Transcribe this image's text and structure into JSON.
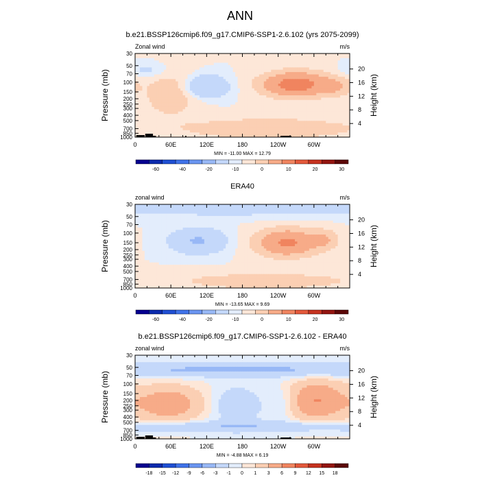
{
  "page_title": "ANN",
  "colorbar_labels_abs": [
    "-60",
    "-40",
    "-20",
    "-10",
    "0",
    "10",
    "20",
    "30"
  ],
  "colorbar_labels_diff": [
    "-18",
    "-15",
    "-12",
    "-9",
    "-6",
    "-3",
    "-1",
    "0",
    "1",
    "3",
    "6",
    "9",
    "12",
    "15",
    "18"
  ],
  "colorbar_colors": [
    "#05008f",
    "#0b2aad",
    "#1f4fd3",
    "#3f72e8",
    "#6a95f0",
    "#98b8f6",
    "#c4d8fa",
    "#e3edfc",
    "#fde7d8",
    "#fbcfb3",
    "#f7ab88",
    "#f0845f",
    "#e3593b",
    "#c5321f",
    "#931510",
    "#5c0707"
  ],
  "colors": {
    "land": "#000000",
    "axes": "#000000"
  },
  "chart_data": [
    {
      "type": "heatmap",
      "panel": "model",
      "title": "b.e21.BSSP126cmip6.f09_g17.CMIP6-SSP1-2.6.102 (yrs 2075-2099)",
      "left_label": "Zonal wind",
      "units": "m/s",
      "ylabel": "Pressure (mb)",
      "ylabel_right": "Height (km)",
      "x_ticks": [
        "0",
        "60E",
        "120E",
        "180",
        "120W",
        "60W"
      ],
      "x_range": [
        0,
        360
      ],
      "y_ticks": [
        "30",
        "50",
        "70",
        "100",
        "150",
        "200",
        "250",
        "300",
        "400",
        "500",
        "700",
        "850",
        "1000"
      ],
      "y_range_mb": [
        1000,
        30
      ],
      "y_scale": "log",
      "y_right_ticks": [
        "4",
        "8",
        "12",
        "16",
        "20"
      ],
      "stats": "MIN = -11.00  MAX =  12.79",
      "min": -11.0,
      "max": 12.79,
      "colorbar": "abs",
      "contour_levels": [
        -60,
        -40,
        -20,
        -10,
        0,
        10,
        20,
        30
      ],
      "show_land": true
    },
    {
      "type": "heatmap",
      "panel": "obs",
      "title": "ERA40",
      "left_label": "zonal wind",
      "units": "m/s",
      "ylabel": "Pressure (mb)",
      "ylabel_right": "Height (km)",
      "x_ticks": [
        "0",
        "60E",
        "120E",
        "180",
        "120W",
        "60W"
      ],
      "x_range": [
        0,
        360
      ],
      "y_ticks": [
        "30",
        "50",
        "70",
        "100",
        "150",
        "200",
        "250",
        "300",
        "400",
        "500",
        "700",
        "850",
        "1000"
      ],
      "y_range_mb": [
        1000,
        30
      ],
      "y_scale": "log",
      "y_right_ticks": [
        "4",
        "8",
        "12",
        "16",
        "20"
      ],
      "stats": "MIN = -13.65  MAX =   9.69",
      "min": -13.65,
      "max": 9.69,
      "colorbar": "abs",
      "contour_levels": [
        -60,
        -40,
        -20,
        -10,
        0,
        10,
        20,
        30
      ],
      "show_land": false
    },
    {
      "type": "heatmap",
      "panel": "diff",
      "title": "b.e21.BSSP126cmip6.f09_g17.CMIP6-SSP1-2.6.102 - ERA40",
      "left_label": "zonal wind",
      "units": "m/s",
      "ylabel": "Pressure (mb)",
      "ylabel_right": "Height (km)",
      "x_ticks": [
        "0",
        "60E",
        "120E",
        "180",
        "120W",
        "60W"
      ],
      "x_range": [
        0,
        360
      ],
      "y_ticks": [
        "30",
        "50",
        "70",
        "100",
        "150",
        "200",
        "250",
        "300",
        "400",
        "500",
        "700",
        "850",
        "1000"
      ],
      "y_range_mb": [
        1000,
        30
      ],
      "y_scale": "log",
      "y_right_ticks": [
        "4",
        "8",
        "12",
        "16",
        "20"
      ],
      "stats": "MIN =  -4.88  MAX =   6.19",
      "min": -4.88,
      "max": 6.19,
      "colorbar": "diff",
      "contour_levels": [
        -18,
        -15,
        -12,
        -9,
        -6,
        -3,
        -1,
        0,
        1,
        3,
        6,
        9,
        12,
        15,
        18
      ],
      "show_land": true
    }
  ]
}
